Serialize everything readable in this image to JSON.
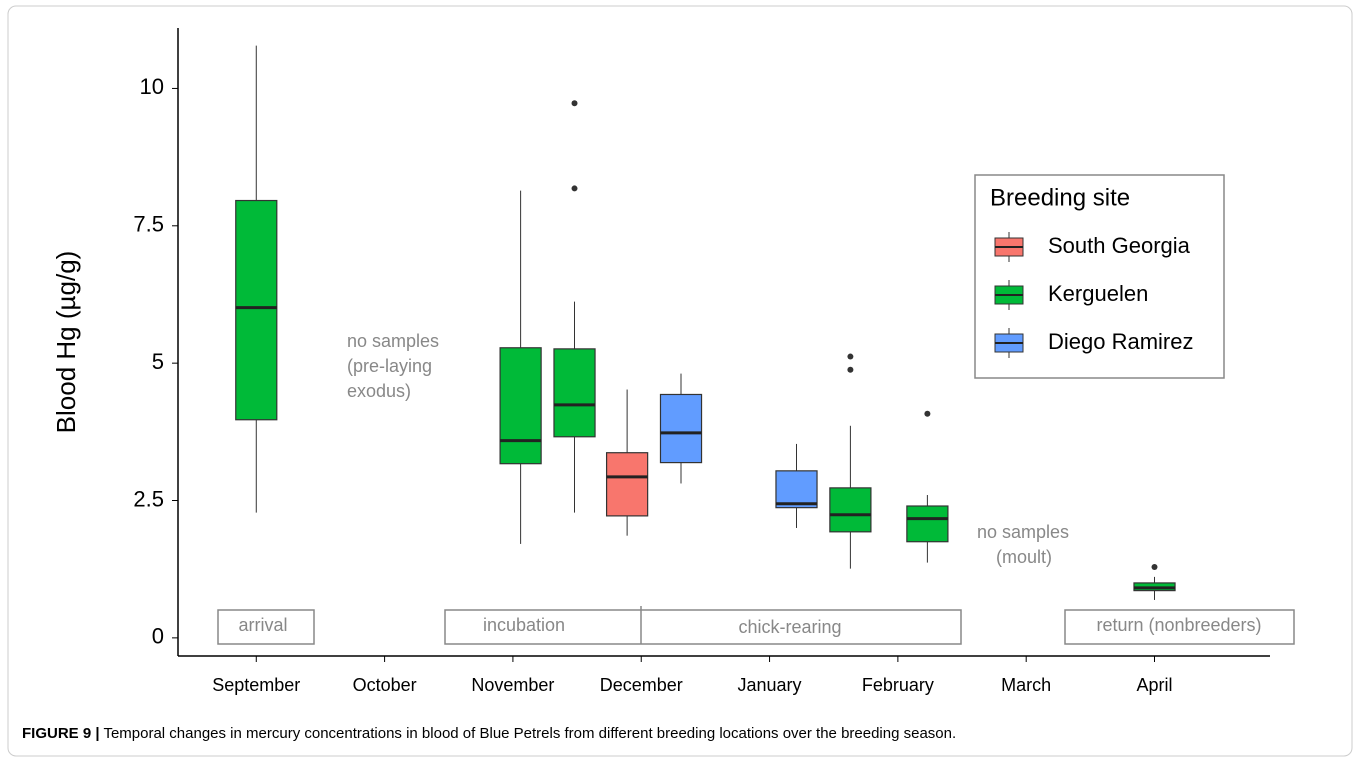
{
  "chart_data": {
    "type": "box",
    "y_label": "Blood Hg (µg/g)",
    "ylim": [
      -0.33,
      11.1
    ],
    "yticks": [
      0,
      2.5,
      5,
      7.5,
      10
    ],
    "xlim": [
      -0.61,
      7.9
    ],
    "xticks": [
      {
        "value": 0,
        "label": "September"
      },
      {
        "value": 1,
        "label": "October"
      },
      {
        "value": 2,
        "label": "November"
      },
      {
        "value": 3,
        "label": "December"
      },
      {
        "value": 4,
        "label": "January"
      },
      {
        "value": 5,
        "label": "February"
      },
      {
        "value": 6,
        "label": "March"
      },
      {
        "value": 7,
        "label": "April"
      }
    ],
    "legend_title": "Breeding site",
    "legend_position": "upper right",
    "series": [
      {
        "name": "South Georgia",
        "color": "#f8766d",
        "boxes": [
          {
            "x": 2.89,
            "whislo": 1.86,
            "q1": 2.22,
            "med": 2.93,
            "q3": 3.37,
            "whishi": 4.52,
            "fliers": []
          }
        ]
      },
      {
        "name": "Kerguelen",
        "color": "#00ba38",
        "boxes": [
          {
            "x": 0,
            "whislo": 2.28,
            "q1": 3.97,
            "med": 6.01,
            "q3": 7.96,
            "whishi": 10.78,
            "fliers": []
          },
          {
            "x": 2.06,
            "whislo": 1.71,
            "q1": 3.17,
            "med": 3.59,
            "q3": 5.28,
            "whishi": 8.14,
            "fliers": []
          },
          {
            "x": 2.48,
            "whislo": 2.28,
            "q1": 3.66,
            "med": 4.24,
            "q3": 5.26,
            "whishi": 6.12,
            "fliers": [
              8.18,
              9.73
            ]
          },
          {
            "x": 4.63,
            "whislo": 1.26,
            "q1": 1.93,
            "med": 2.24,
            "q3": 2.73,
            "whishi": 3.86,
            "fliers": [
              4.88,
              5.12
            ]
          },
          {
            "x": 5.23,
            "whislo": 1.37,
            "q1": 1.75,
            "med": 2.17,
            "q3": 2.4,
            "whishi": 2.6,
            "fliers": [
              4.08
            ]
          },
          {
            "x": 7.0,
            "whislo": 0.69,
            "q1": 0.86,
            "med": 0.91,
            "q3": 1.0,
            "whishi": 1.11,
            "fliers": [
              1.29
            ]
          }
        ]
      },
      {
        "name": "Diego Ramirez",
        "color": "#619cff",
        "boxes": [
          {
            "x": 3.31,
            "whislo": 2.81,
            "q1": 3.19,
            "med": 3.73,
            "q3": 4.43,
            "whishi": 4.81,
            "fliers": []
          },
          {
            "x": 4.21,
            "whislo": 2.0,
            "q1": 2.37,
            "med": 2.44,
            "q3": 3.04,
            "whishi": 3.53,
            "fliers": []
          }
        ]
      }
    ],
    "annotations": {
      "pre_laying": [
        "no samples",
        "(pre-laying",
        "exodus)"
      ],
      "moult": [
        "no samples",
        "(moult)"
      ]
    },
    "phases": [
      "arrival",
      "incubation",
      "chick-rearing",
      "return (nonbreeders)"
    ],
    "caption_label": "FIGURE 9 |",
    "caption": " Temporal changes in mercury concentrations in blood of Blue Petrels from different breeding locations over the breeding season."
  }
}
